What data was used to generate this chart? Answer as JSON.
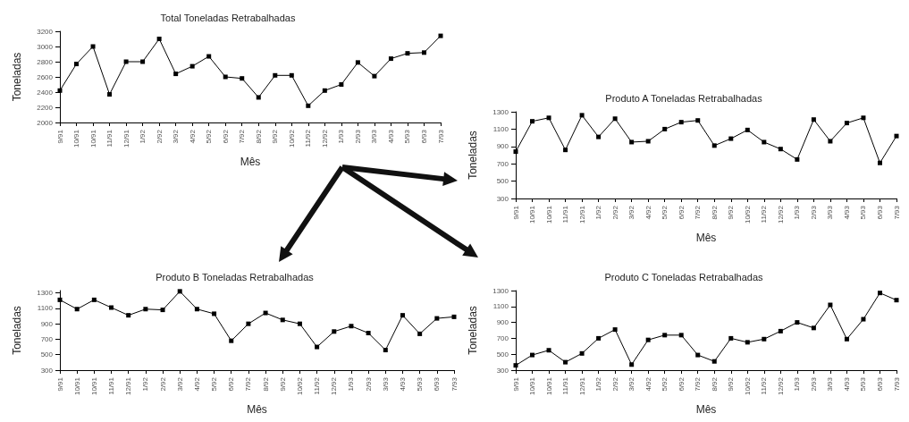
{
  "chart_data": [
    {
      "type": "line",
      "title": "Total Toneladas Retrabalhadas",
      "xlabel": "Mês",
      "ylabel": "Toneladas",
      "categories": [
        "9/91",
        "10/91",
        "10/91",
        "11/91",
        "12/91",
        "1/92",
        "2/92",
        "3/92",
        "4/92",
        "5/92",
        "6/92",
        "7/92",
        "8/92",
        "9/92",
        "10/92",
        "11/92",
        "12/92",
        "1/93",
        "2/93",
        "3/93",
        "4/93",
        "5/93",
        "6/93",
        "7/93"
      ],
      "values": [
        2420,
        2770,
        3000,
        2370,
        2800,
        2800,
        3100,
        2640,
        2740,
        2870,
        2600,
        2580,
        2330,
        2620,
        2620,
        2220,
        2420,
        2500,
        2790,
        2610,
        2840,
        2910,
        2920,
        3140
      ],
      "color": "#000000",
      "ylim": [
        2000,
        3200
      ],
      "yticks": [
        2000,
        2200,
        2400,
        2600,
        2800,
        3000,
        3200
      ],
      "marker": "square",
      "grid": false
    },
    {
      "type": "line",
      "title": "Produto A Toneladas Retrabalhadas",
      "xlabel": "Mês",
      "ylabel": "Toneladas",
      "categories": [
        "9/91",
        "10/91",
        "10/91",
        "11/91",
        "12/91",
        "1/92",
        "2/92",
        "3/92",
        "4/92",
        "5/92",
        "6/92",
        "7/92",
        "8/92",
        "9/92",
        "10/92",
        "11/92",
        "12/92",
        "1/93",
        "2/93",
        "3/93",
        "4/93",
        "5/93",
        "6/93",
        "7/93"
      ],
      "values": [
        840,
        1190,
        1230,
        860,
        1260,
        1010,
        1220,
        950,
        960,
        1100,
        1180,
        1200,
        910,
        990,
        1090,
        950,
        870,
        750,
        1210,
        960,
        1170,
        1230,
        710,
        1020
      ],
      "color": "#000000",
      "ylim": [
        300,
        1300
      ],
      "yticks": [
        300,
        500,
        700,
        900,
        1100,
        1300
      ],
      "marker": "square",
      "grid": false
    },
    {
      "type": "line",
      "title": "Produto B Toneladas Retrabalhadas",
      "xlabel": "Mês",
      "ylabel": "Toneladas",
      "categories": [
        "9/91",
        "10/91",
        "10/91",
        "11/91",
        "12/91",
        "1/92",
        "2/92",
        "3/92",
        "4/92",
        "5/92",
        "6/92",
        "7/92",
        "8/92",
        "9/92",
        "10/92",
        "11/92",
        "12/92",
        "1/93",
        "2/93",
        "3/93",
        "4/93",
        "5/93",
        "6/93",
        "7/93"
      ],
      "values": [
        1210,
        1090,
        1210,
        1110,
        1010,
        1090,
        1080,
        1320,
        1090,
        1030,
        680,
        900,
        1040,
        950,
        900,
        600,
        800,
        870,
        780,
        560,
        1010,
        770,
        970,
        990
      ],
      "color": "#000000",
      "ylim": [
        300,
        1330
      ],
      "yticks": [
        300,
        500,
        700,
        900,
        1100,
        1300
      ],
      "marker": "square",
      "grid": false
    },
    {
      "type": "line",
      "title": "Produto C Toneladas Retrabalhadas",
      "xlabel": "Mês",
      "ylabel": "Toneladas",
      "categories": [
        "9/91",
        "10/91",
        "10/91",
        "11/91",
        "12/91",
        "1/92",
        "2/92",
        "3/92",
        "4/92",
        "5/92",
        "6/92",
        "7/92",
        "8/92",
        "9/92",
        "10/92",
        "11/92",
        "12/92",
        "1/93",
        "2/93",
        "3/93",
        "4/93",
        "5/93",
        "6/93",
        "7/93"
      ],
      "values": [
        360,
        490,
        550,
        400,
        510,
        700,
        810,
        370,
        680,
        740,
        740,
        490,
        410,
        700,
        650,
        690,
        790,
        900,
        830,
        1120,
        690,
        940,
        1270,
        1180
      ],
      "color": "#000000",
      "ylim": [
        300,
        1300
      ],
      "yticks": [
        300,
        500,
        700,
        900,
        1100,
        1300
      ],
      "marker": "square",
      "grid": false
    }
  ]
}
